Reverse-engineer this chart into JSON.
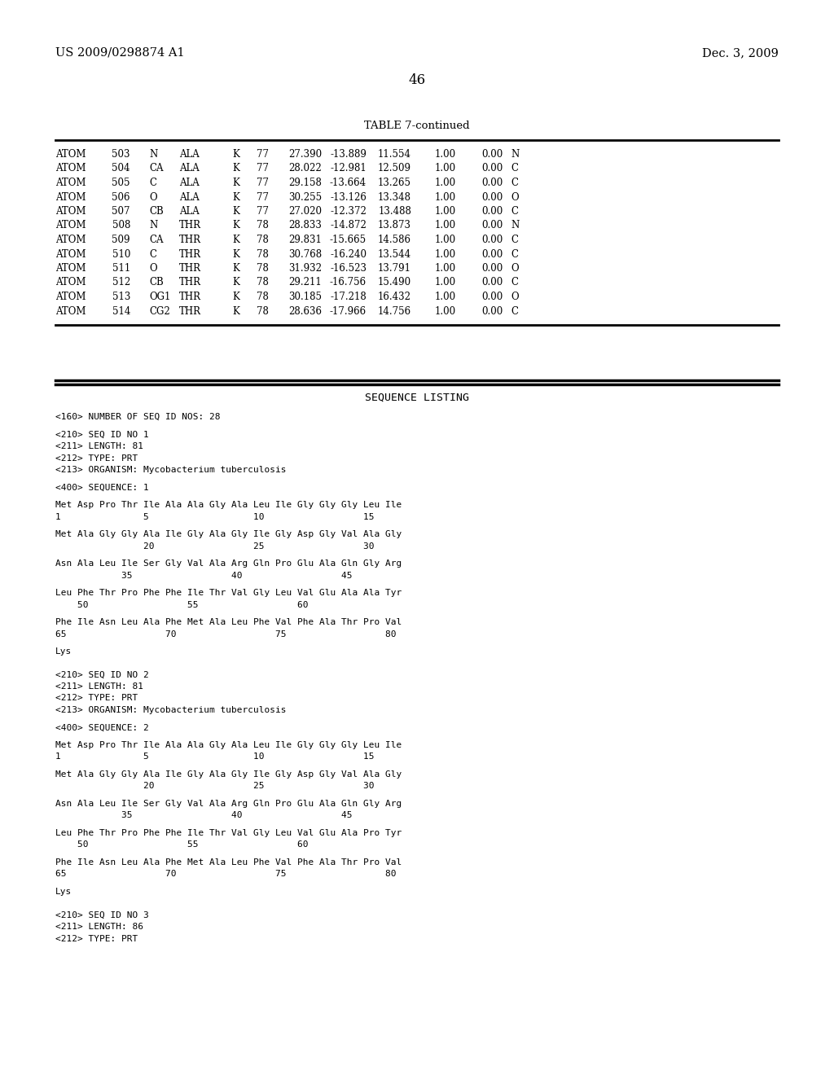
{
  "header_left": "US 2009/0298874 A1",
  "header_right": "Dec. 3, 2009",
  "page_number": "46",
  "table_title": "TABLE 7-continued",
  "table_rows": [
    [
      "ATOM",
      "503",
      "N",
      "ALA",
      "K",
      "77",
      "27.390",
      "-13.889",
      "11.554",
      "1.00",
      "0.00",
      "N"
    ],
    [
      "ATOM",
      "504",
      "CA",
      "ALA",
      "K",
      "77",
      "28.022",
      "-12.981",
      "12.509",
      "1.00",
      "0.00",
      "C"
    ],
    [
      "ATOM",
      "505",
      "C",
      "ALA",
      "K",
      "77",
      "29.158",
      "-13.664",
      "13.265",
      "1.00",
      "0.00",
      "C"
    ],
    [
      "ATOM",
      "506",
      "O",
      "ALA",
      "K",
      "77",
      "30.255",
      "-13.126",
      "13.348",
      "1.00",
      "0.00",
      "O"
    ],
    [
      "ATOM",
      "507",
      "CB",
      "ALA",
      "K",
      "77",
      "27.020",
      "-12.372",
      "13.488",
      "1.00",
      "0.00",
      "C"
    ],
    [
      "ATOM",
      "508",
      "N",
      "THR",
      "K",
      "78",
      "28.833",
      "-14.872",
      "13.873",
      "1.00",
      "0.00",
      "N"
    ],
    [
      "ATOM",
      "509",
      "CA",
      "THR",
      "K",
      "78",
      "29.831",
      "-15.665",
      "14.586",
      "1.00",
      "0.00",
      "C"
    ],
    [
      "ATOM",
      "510",
      "C",
      "THR",
      "K",
      "78",
      "30.768",
      "-16.240",
      "13.544",
      "1.00",
      "0.00",
      "C"
    ],
    [
      "ATOM",
      "511",
      "O",
      "THR",
      "K",
      "78",
      "31.932",
      "-16.523",
      "13.791",
      "1.00",
      "0.00",
      "O"
    ],
    [
      "ATOM",
      "512",
      "CB",
      "THR",
      "K",
      "78",
      "29.211",
      "-16.756",
      "15.490",
      "1.00",
      "0.00",
      "C"
    ],
    [
      "ATOM",
      "513",
      "OG1",
      "THR",
      "K",
      "78",
      "30.185",
      "-17.218",
      "16.432",
      "1.00",
      "0.00",
      "O"
    ],
    [
      "ATOM",
      "514",
      "CG2",
      "THR",
      "K",
      "78",
      "28.636",
      "-17.966",
      "14.756",
      "1.00",
      "0.00",
      "C"
    ]
  ],
  "sequence_listing_title": "SEQUENCE LISTING",
  "sequence_text": [
    "<160> NUMBER OF SEQ ID NOS: 28",
    "",
    "<210> SEQ ID NO 1",
    "<211> LENGTH: 81",
    "<212> TYPE: PRT",
    "<213> ORGANISM: Mycobacterium tuberculosis",
    "",
    "<400> SEQUENCE: 1",
    "",
    "Met Asp Pro Thr Ile Ala Ala Gly Ala Leu Ile Gly Gly Gly Leu Ile",
    "1               5                   10                  15",
    "",
    "Met Ala Gly Gly Ala Ile Gly Ala Gly Ile Gly Asp Gly Val Ala Gly",
    "                20                  25                  30",
    "",
    "Asn Ala Leu Ile Ser Gly Val Ala Arg Gln Pro Glu Ala Gln Gly Arg",
    "            35                  40                  45",
    "",
    "Leu Phe Thr Pro Phe Phe Ile Thr Val Gly Leu Val Glu Ala Ala Tyr",
    "    50                  55                  60",
    "",
    "Phe Ile Asn Leu Ala Phe Met Ala Leu Phe Val Phe Ala Thr Pro Val",
    "65                  70                  75                  80",
    "",
    "Lys",
    "",
    "",
    "<210> SEQ ID NO 2",
    "<211> LENGTH: 81",
    "<212> TYPE: PRT",
    "<213> ORGANISM: Mycobacterium tuberculosis",
    "",
    "<400> SEQUENCE: 2",
    "",
    "Met Asp Pro Thr Ile Ala Ala Gly Ala Leu Ile Gly Gly Gly Leu Ile",
    "1               5                   10                  15",
    "",
    "Met Ala Gly Gly Ala Ile Gly Ala Gly Ile Gly Asp Gly Val Ala Gly",
    "                20                  25                  30",
    "",
    "Asn Ala Leu Ile Ser Gly Val Ala Arg Gln Pro Glu Ala Gln Gly Arg",
    "            35                  40                  45",
    "",
    "Leu Phe Thr Pro Phe Phe Ile Thr Val Gly Leu Val Glu Ala Pro Tyr",
    "    50                  55                  60",
    "",
    "Phe Ile Asn Leu Ala Phe Met Ala Leu Phe Val Phe Ala Thr Pro Val",
    "65                  70                  75                  80",
    "",
    "Lys",
    "",
    "",
    "<210> SEQ ID NO 3",
    "<211> LENGTH: 86",
    "<212> TYPE: PRT"
  ],
  "font_size_header": 10.5,
  "font_size_table_title": 9.5,
  "font_size_table": 8.5,
  "font_size_sequence": 8.0,
  "font_size_page_num": 12,
  "background_color": "#ffffff",
  "text_color": "#000000"
}
